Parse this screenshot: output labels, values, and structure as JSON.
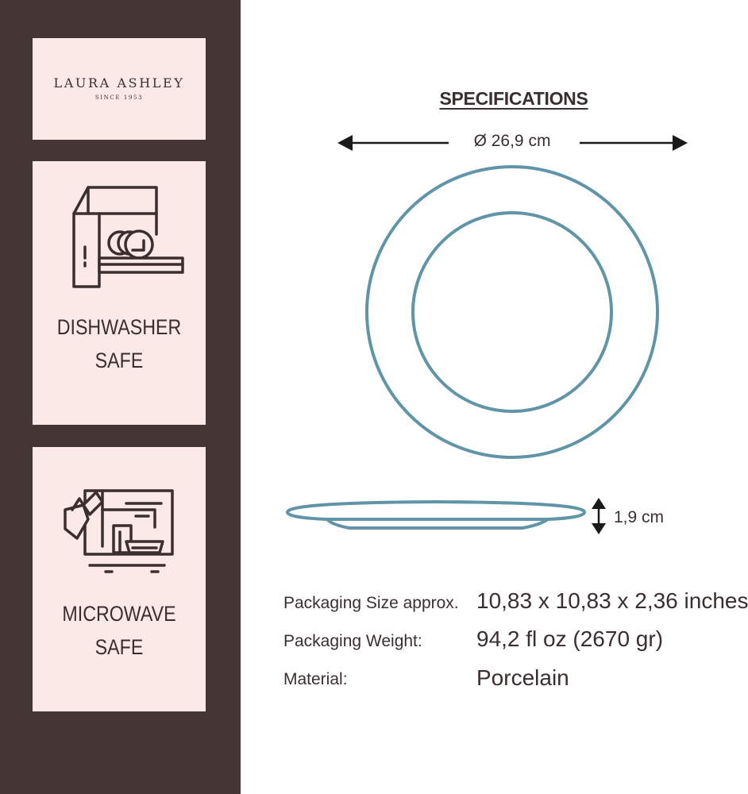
{
  "brand": {
    "name": "LAURA ASHLEY",
    "since": "SINCE 1953"
  },
  "features": {
    "dishwasher": {
      "line1": "DISHWASHER",
      "line2": "SAFE",
      "icon": "dishwasher-icon"
    },
    "microwave": {
      "line1": "MICROWAVE",
      "line2": "SAFE",
      "icon": "microwave-icon"
    }
  },
  "specs": {
    "title": "SPECIFICATIONS",
    "diameter": "Ø 26,9 cm",
    "height": "1,9 cm",
    "rows": [
      {
        "label": "Packaging Size approx.",
        "value": "10,83 x 10,83 x 2,36 inches"
      },
      {
        "label": "Packaging Weight:",
        "value": "94,2 fl oz (2670 gr)"
      },
      {
        "label": "Material:",
        "value": "Porcelain"
      }
    ]
  },
  "colors": {
    "sidebar": "#433634",
    "card": "#fbe9e8",
    "plate_outline": "#5f95a6",
    "text": "#3a2f2e"
  }
}
